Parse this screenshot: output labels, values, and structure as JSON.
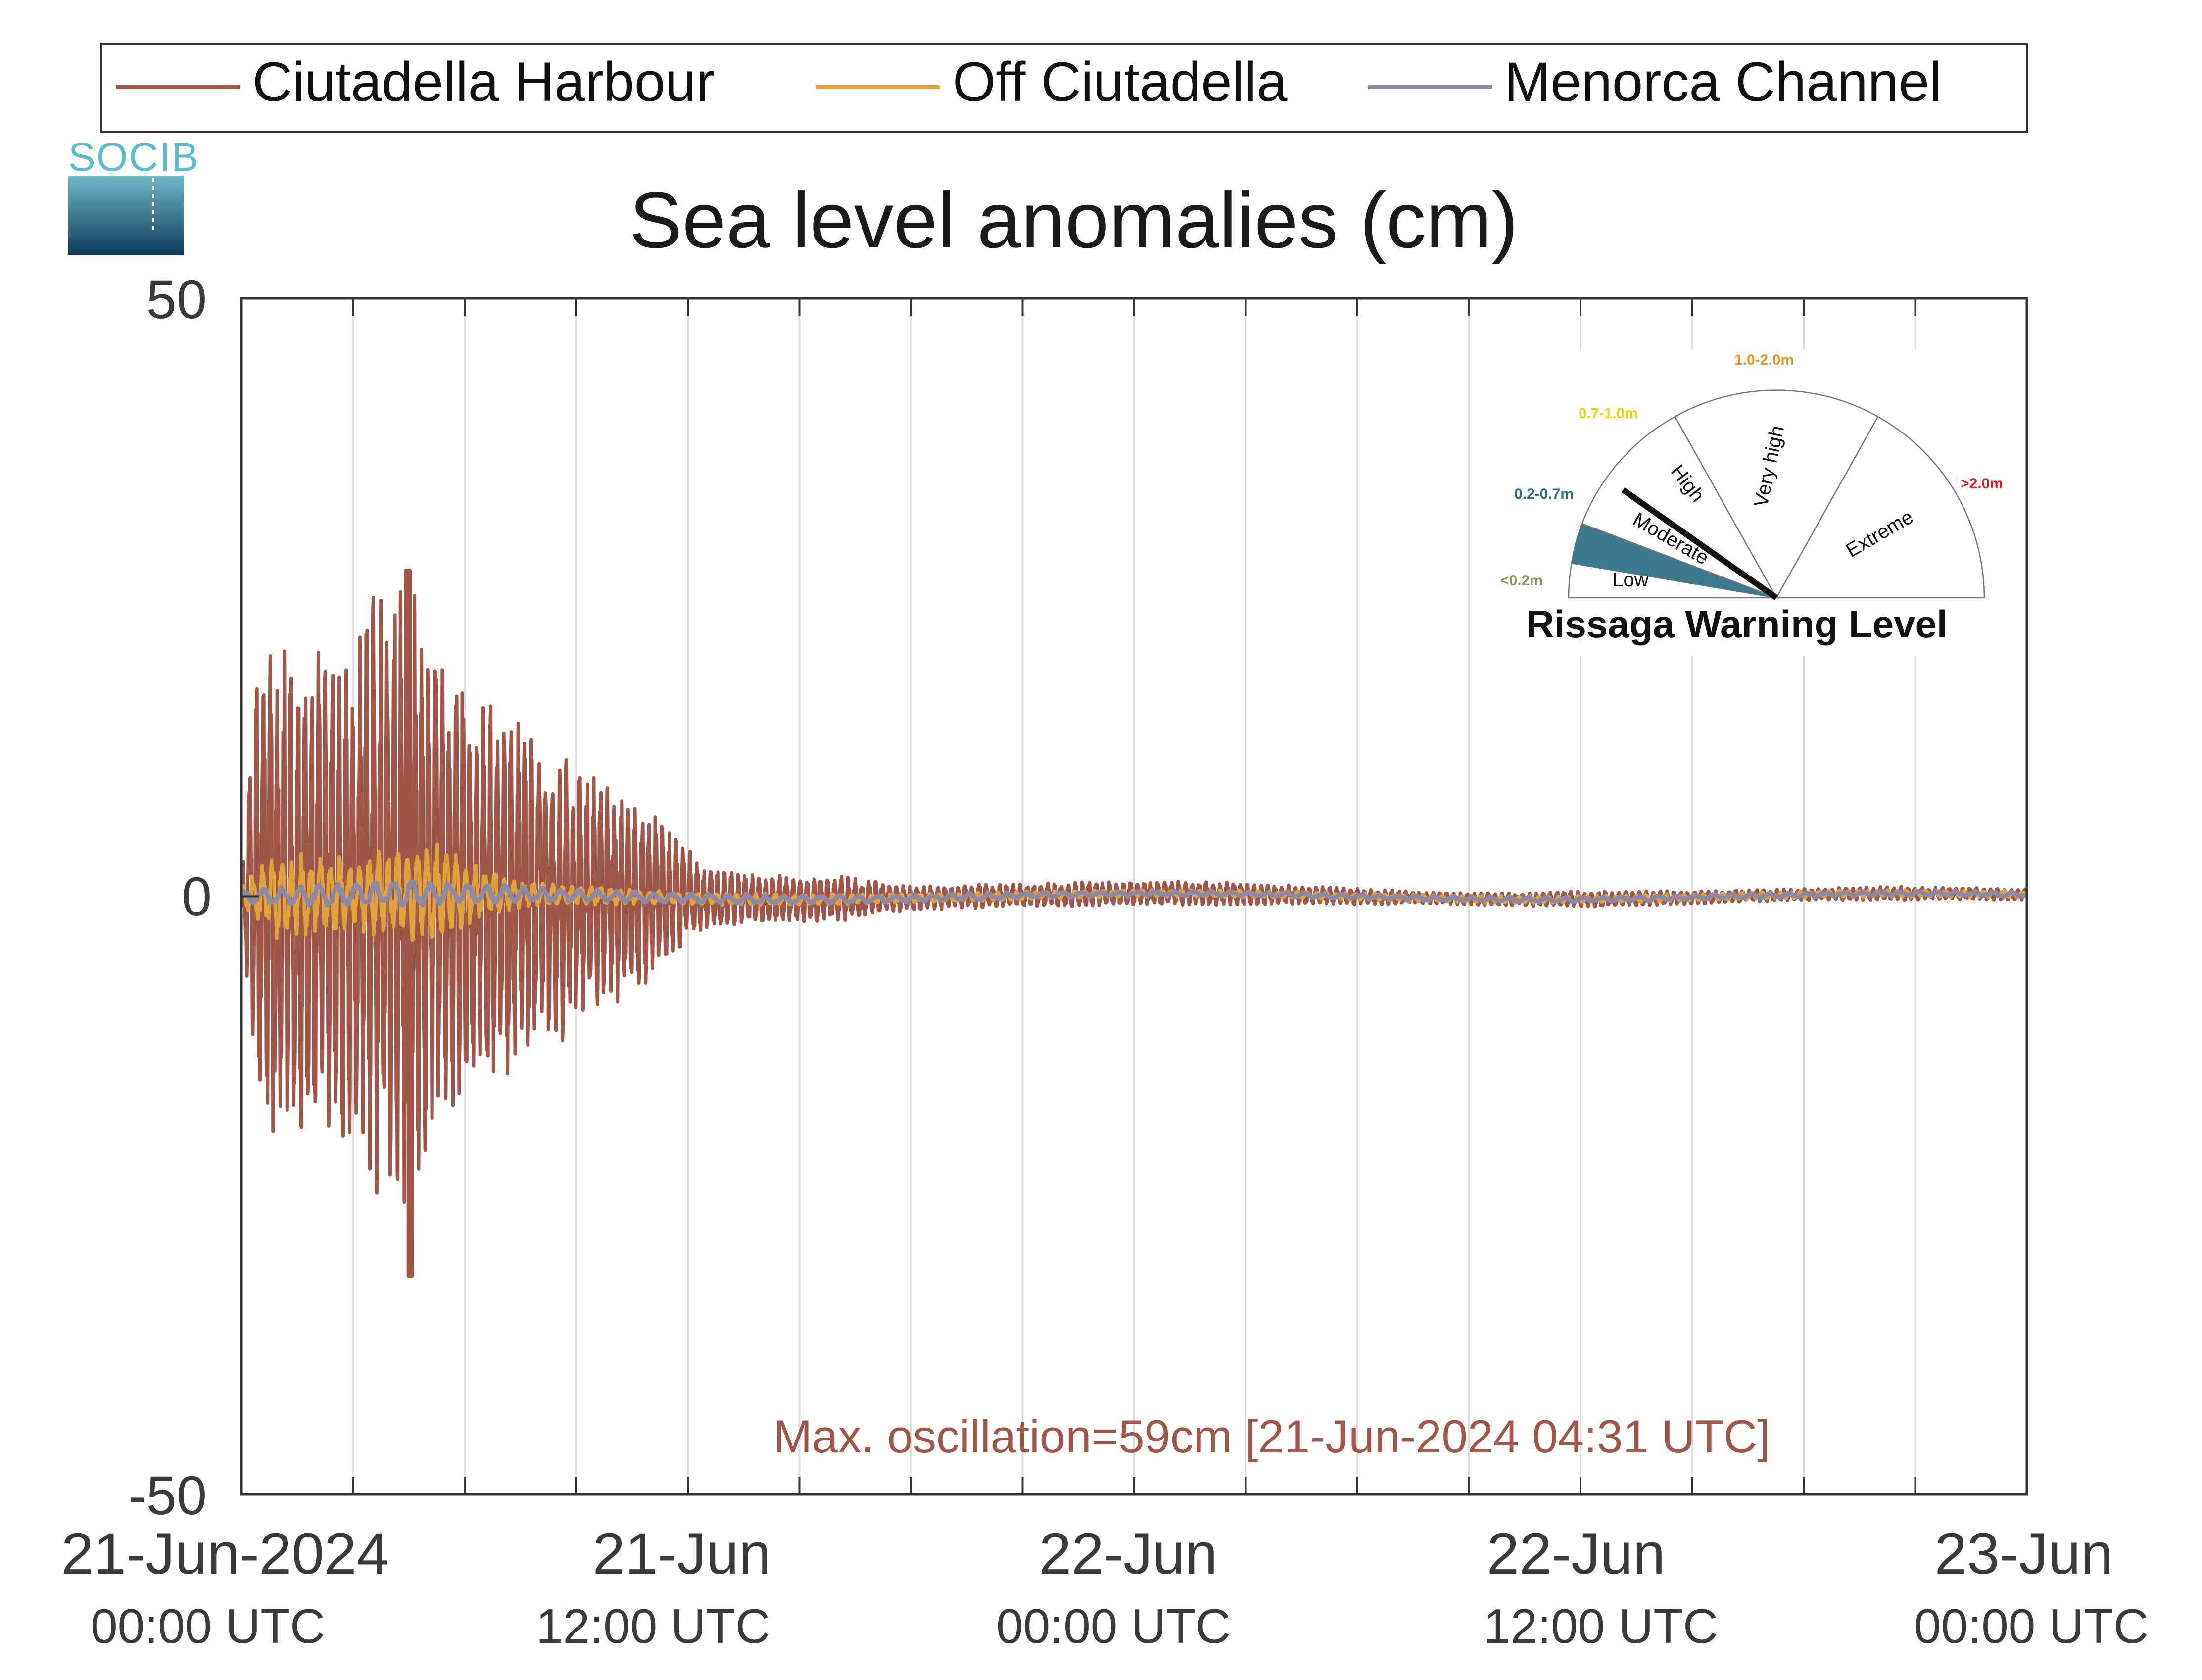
{
  "chart_data": {
    "type": "line",
    "title": "Sea level anomalies (cm)",
    "ylim": [
      -50,
      50
    ],
    "yticks": [
      "50",
      "0",
      "-50"
    ],
    "x_range_hours": [
      0,
      48
    ],
    "x_unit": "hours since 21-Jun-2024 00:00 UTC",
    "xtick_labels": [
      {
        "hour": 0,
        "date": "21-Jun-2024",
        "time": "00:00 UTC"
      },
      {
        "hour": 12,
        "date": "21-Jun",
        "time": "12:00 UTC"
      },
      {
        "hour": 24,
        "date": "22-Jun",
        "time": "00:00 UTC"
      },
      {
        "hour": 36,
        "date": "22-Jun",
        "time": "12:00 UTC"
      },
      {
        "hour": 48,
        "date": "23-Jun",
        "time": "00:00 UTC"
      }
    ],
    "grid_hours": [
      3,
      6,
      9,
      12,
      15,
      18,
      21,
      24,
      27,
      30,
      33,
      36,
      39,
      42,
      45
    ],
    "grid": true,
    "legend_position": "top",
    "series": [
      {
        "name": "Ciutadella Harbour",
        "color": "#a0574a",
        "envelope_hours": [
          0,
          0.3,
          0.7,
          1.5,
          2.5,
          3.5,
          4.5,
          5.5,
          6.5,
          7.5,
          8.5,
          9.5,
          10.5,
          11.5,
          12.5,
          14,
          16,
          18,
          20,
          22,
          24,
          26,
          28,
          30,
          32,
          34,
          36,
          38,
          40,
          42,
          44,
          46,
          48
        ],
        "envelope_amplitude_cm": [
          1,
          16,
          22,
          20,
          21,
          25,
          27,
          19,
          17,
          15,
          13,
          10,
          8,
          6,
          2.5,
          2,
          2,
          1,
          1,
          1,
          1,
          1,
          0.8,
          0.7,
          0.5,
          0.5,
          0.7,
          0.6,
          0.5,
          0.5,
          0.6,
          0.5,
          0.5
        ],
        "max_cm": 27,
        "min_cm": -32
      },
      {
        "name": "Off Ciutadella",
        "color": "#e0a03a",
        "envelope_hours": [
          0,
          1,
          2,
          3,
          4,
          5,
          5.5,
          6,
          7,
          8,
          10,
          12,
          14,
          18,
          24,
          30,
          36,
          42,
          48
        ],
        "envelope_amplitude_cm": [
          1,
          4,
          3.5,
          3,
          4,
          4.5,
          4,
          3,
          1.5,
          1,
          0.7,
          0.5,
          0.5,
          0.4,
          0.3,
          0.3,
          0.3,
          0.3,
          0.3
        ]
      },
      {
        "name": "Menorca Channel",
        "color": "#8a8aa6",
        "envelope_hours": [
          0,
          2,
          4,
          6,
          8,
          12,
          18,
          24,
          30,
          36,
          42,
          48
        ],
        "envelope_amplitude_cm": [
          0.6,
          1.0,
          1.1,
          0.9,
          0.6,
          0.4,
          0.3,
          0.2,
          0.2,
          0.2,
          0.2,
          0.2
        ]
      }
    ],
    "annotation": "Max. oscillation=59cm [21-Jun-2024 04:31 UTC]",
    "annotation_color": "#a0574a"
  },
  "logo": {
    "text": "SOCIB"
  },
  "warning_gauge": {
    "title": "Rissaga Warning Level",
    "current_level": "Moderate",
    "levels": [
      {
        "name": "Low",
        "range": "<0.2m",
        "range_color": "#8a9a5b"
      },
      {
        "name": "Moderate",
        "range": "0.2-0.7m",
        "range_color": "#2f6f8a",
        "fill": "#3d7a8f"
      },
      {
        "name": "High",
        "range": "0.7-1.0m",
        "range_color": "#f0d000"
      },
      {
        "name": "Very high",
        "range": "1.0-2.0m",
        "range_color": "#e89a20"
      },
      {
        "name": "Extreme",
        "range": ">2.0m",
        "range_color": "#e02020"
      }
    ]
  }
}
